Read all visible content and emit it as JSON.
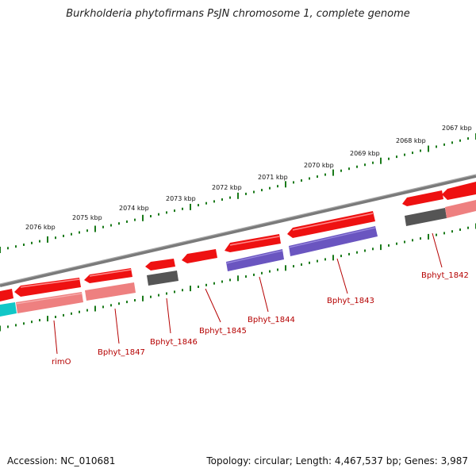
{
  "title": "Burkholderia phytofirmans PsJN chromosome 1, complete genome",
  "footer": {
    "accession": "Accession: NC_010681",
    "summary": "Topology: circular; Length: 4,467,537 bp; Genes: 3,987"
  },
  "colors": {
    "tick": "#1a7a1a",
    "backbone": "#7a7a7a",
    "gene_red": "#ee1111",
    "gene_pink": "#ee8080",
    "gene_blue": "#6a55c0",
    "gene_gray": "#555555",
    "gene_cyan": "#11c7c7",
    "label": "#b50000"
  },
  "scale_labels": [
    "2067 kbp",
    "2068 kbp",
    "2069 kbp",
    "2070 kbp",
    "2071 kbp",
    "2072 kbp",
    "2073 kbp",
    "2074 kbp",
    "2075 kbp",
    "2076 kbp"
  ],
  "gene_labels": [
    "rimO",
    "Bphyt_1847",
    "Bphyt_1846",
    "Bphyt_1845",
    "Bphyt_1844",
    "Bphyt_1843",
    "Bphyt_1842"
  ]
}
